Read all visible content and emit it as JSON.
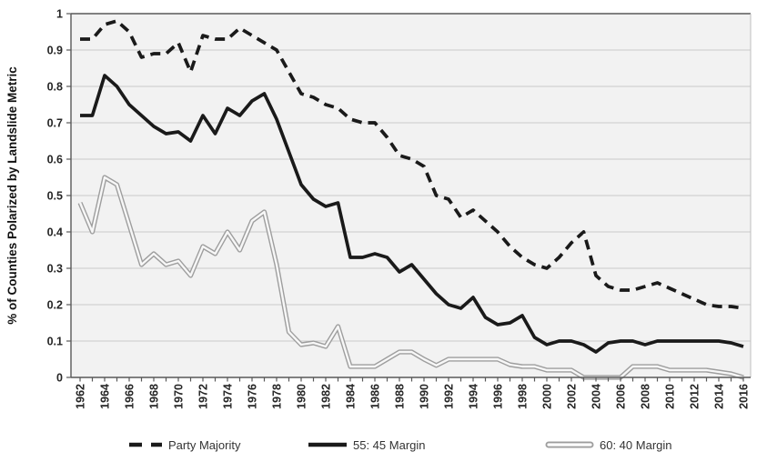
{
  "chart_data": {
    "type": "line",
    "title": "",
    "xlabel": "",
    "ylabel": "% of Counties Polarized by Landslide Metric",
    "ylim": [
      0,
      1
    ],
    "grid": "horizontal",
    "legend_position": "bottom",
    "yticks": [
      "0",
      "0.1",
      "0.2",
      "0.3",
      "0.4",
      "0.5",
      "0.6",
      "0.7",
      "0.8",
      "0.9",
      "1"
    ],
    "xtick_labels": [
      "1962",
      "1964",
      "1966",
      "1968",
      "1970",
      "1972",
      "1974",
      "1976",
      "1978",
      "1980",
      "1982",
      "1984",
      "1986",
      "1988",
      "1990",
      "1992",
      "1994",
      "1996",
      "1998",
      "2000",
      "2002",
      "2004",
      "2006",
      "2008",
      "2010",
      "2012",
      "2014",
      "2016"
    ],
    "x": [
      1962,
      1963,
      1964,
      1965,
      1966,
      1967,
      1968,
      1969,
      1970,
      1971,
      1972,
      1973,
      1974,
      1975,
      1976,
      1977,
      1978,
      1979,
      1980,
      1981,
      1982,
      1983,
      1984,
      1985,
      1986,
      1987,
      1988,
      1989,
      1990,
      1991,
      1992,
      1993,
      1994,
      1995,
      1996,
      1997,
      1998,
      1999,
      2000,
      2001,
      2002,
      2003,
      2004,
      2005,
      2006,
      2007,
      2008,
      2009,
      2010,
      2011,
      2012,
      2013,
      2014,
      2015,
      2016
    ],
    "series": [
      {
        "name": "Party Majority",
        "style": "dashed",
        "values": [
          0.93,
          0.93,
          0.97,
          0.98,
          0.95,
          0.88,
          0.89,
          0.89,
          0.92,
          0.84,
          0.94,
          0.93,
          0.93,
          0.96,
          0.94,
          0.92,
          0.9,
          0.84,
          0.78,
          0.77,
          0.75,
          0.74,
          0.71,
          0.7,
          0.7,
          0.66,
          0.61,
          0.6,
          0.58,
          0.5,
          0.49,
          0.44,
          0.46,
          0.43,
          0.4,
          0.36,
          0.33,
          0.31,
          0.3,
          0.33,
          0.37,
          0.4,
          0.28,
          0.25,
          0.24,
          0.24,
          0.25,
          0.26,
          0.245,
          0.23,
          0.215,
          0.2,
          0.195,
          0.195,
          0.19
        ]
      },
      {
        "name": "55: 45 Margin",
        "style": "solid",
        "values": [
          0.72,
          0.72,
          0.83,
          0.8,
          0.75,
          0.72,
          0.69,
          0.67,
          0.675,
          0.65,
          0.72,
          0.67,
          0.74,
          0.72,
          0.76,
          0.78,
          0.71,
          0.62,
          0.53,
          0.49,
          0.47,
          0.48,
          0.33,
          0.33,
          0.34,
          0.33,
          0.29,
          0.31,
          0.27,
          0.23,
          0.2,
          0.19,
          0.22,
          0.165,
          0.145,
          0.15,
          0.17,
          0.11,
          0.09,
          0.1,
          0.1,
          0.09,
          0.07,
          0.095,
          0.1,
          0.1,
          0.09,
          0.1,
          0.1,
          0.1,
          0.1,
          0.1,
          0.1,
          0.095,
          0.085
        ]
      },
      {
        "name": "60: 40 Margin",
        "style": "double-gray",
        "values": [
          0.48,
          0.4,
          0.55,
          0.53,
          0.42,
          0.31,
          0.34,
          0.31,
          0.32,
          0.28,
          0.36,
          0.34,
          0.4,
          0.35,
          0.43,
          0.455,
          0.31,
          0.125,
          0.09,
          0.095,
          0.085,
          0.14,
          0.03,
          0.03,
          0.03,
          0.05,
          0.07,
          0.07,
          0.05,
          0.033,
          0.05,
          0.05,
          0.05,
          0.05,
          0.05,
          0.035,
          0.03,
          0.03,
          0.02,
          0.02,
          0.02,
          0.0,
          0.0,
          0.0,
          0.0,
          0.03,
          0.03,
          0.03,
          0.02,
          0.02,
          0.02,
          0.02,
          0.015,
          0.01,
          0.0
        ]
      }
    ]
  },
  "colors": {
    "line_dark": "#1a1a1a",
    "line_gray_outer": "#9e9e9e",
    "line_gray_inner": "#f7f7f7",
    "legend_gray_inner": "#ffffff",
    "plot_bg": "#f2f2f2",
    "gridline": "#c9c9c9",
    "axis": "#595959",
    "plot_border_right": "#bfbfbf",
    "tick_label": "#262626"
  }
}
